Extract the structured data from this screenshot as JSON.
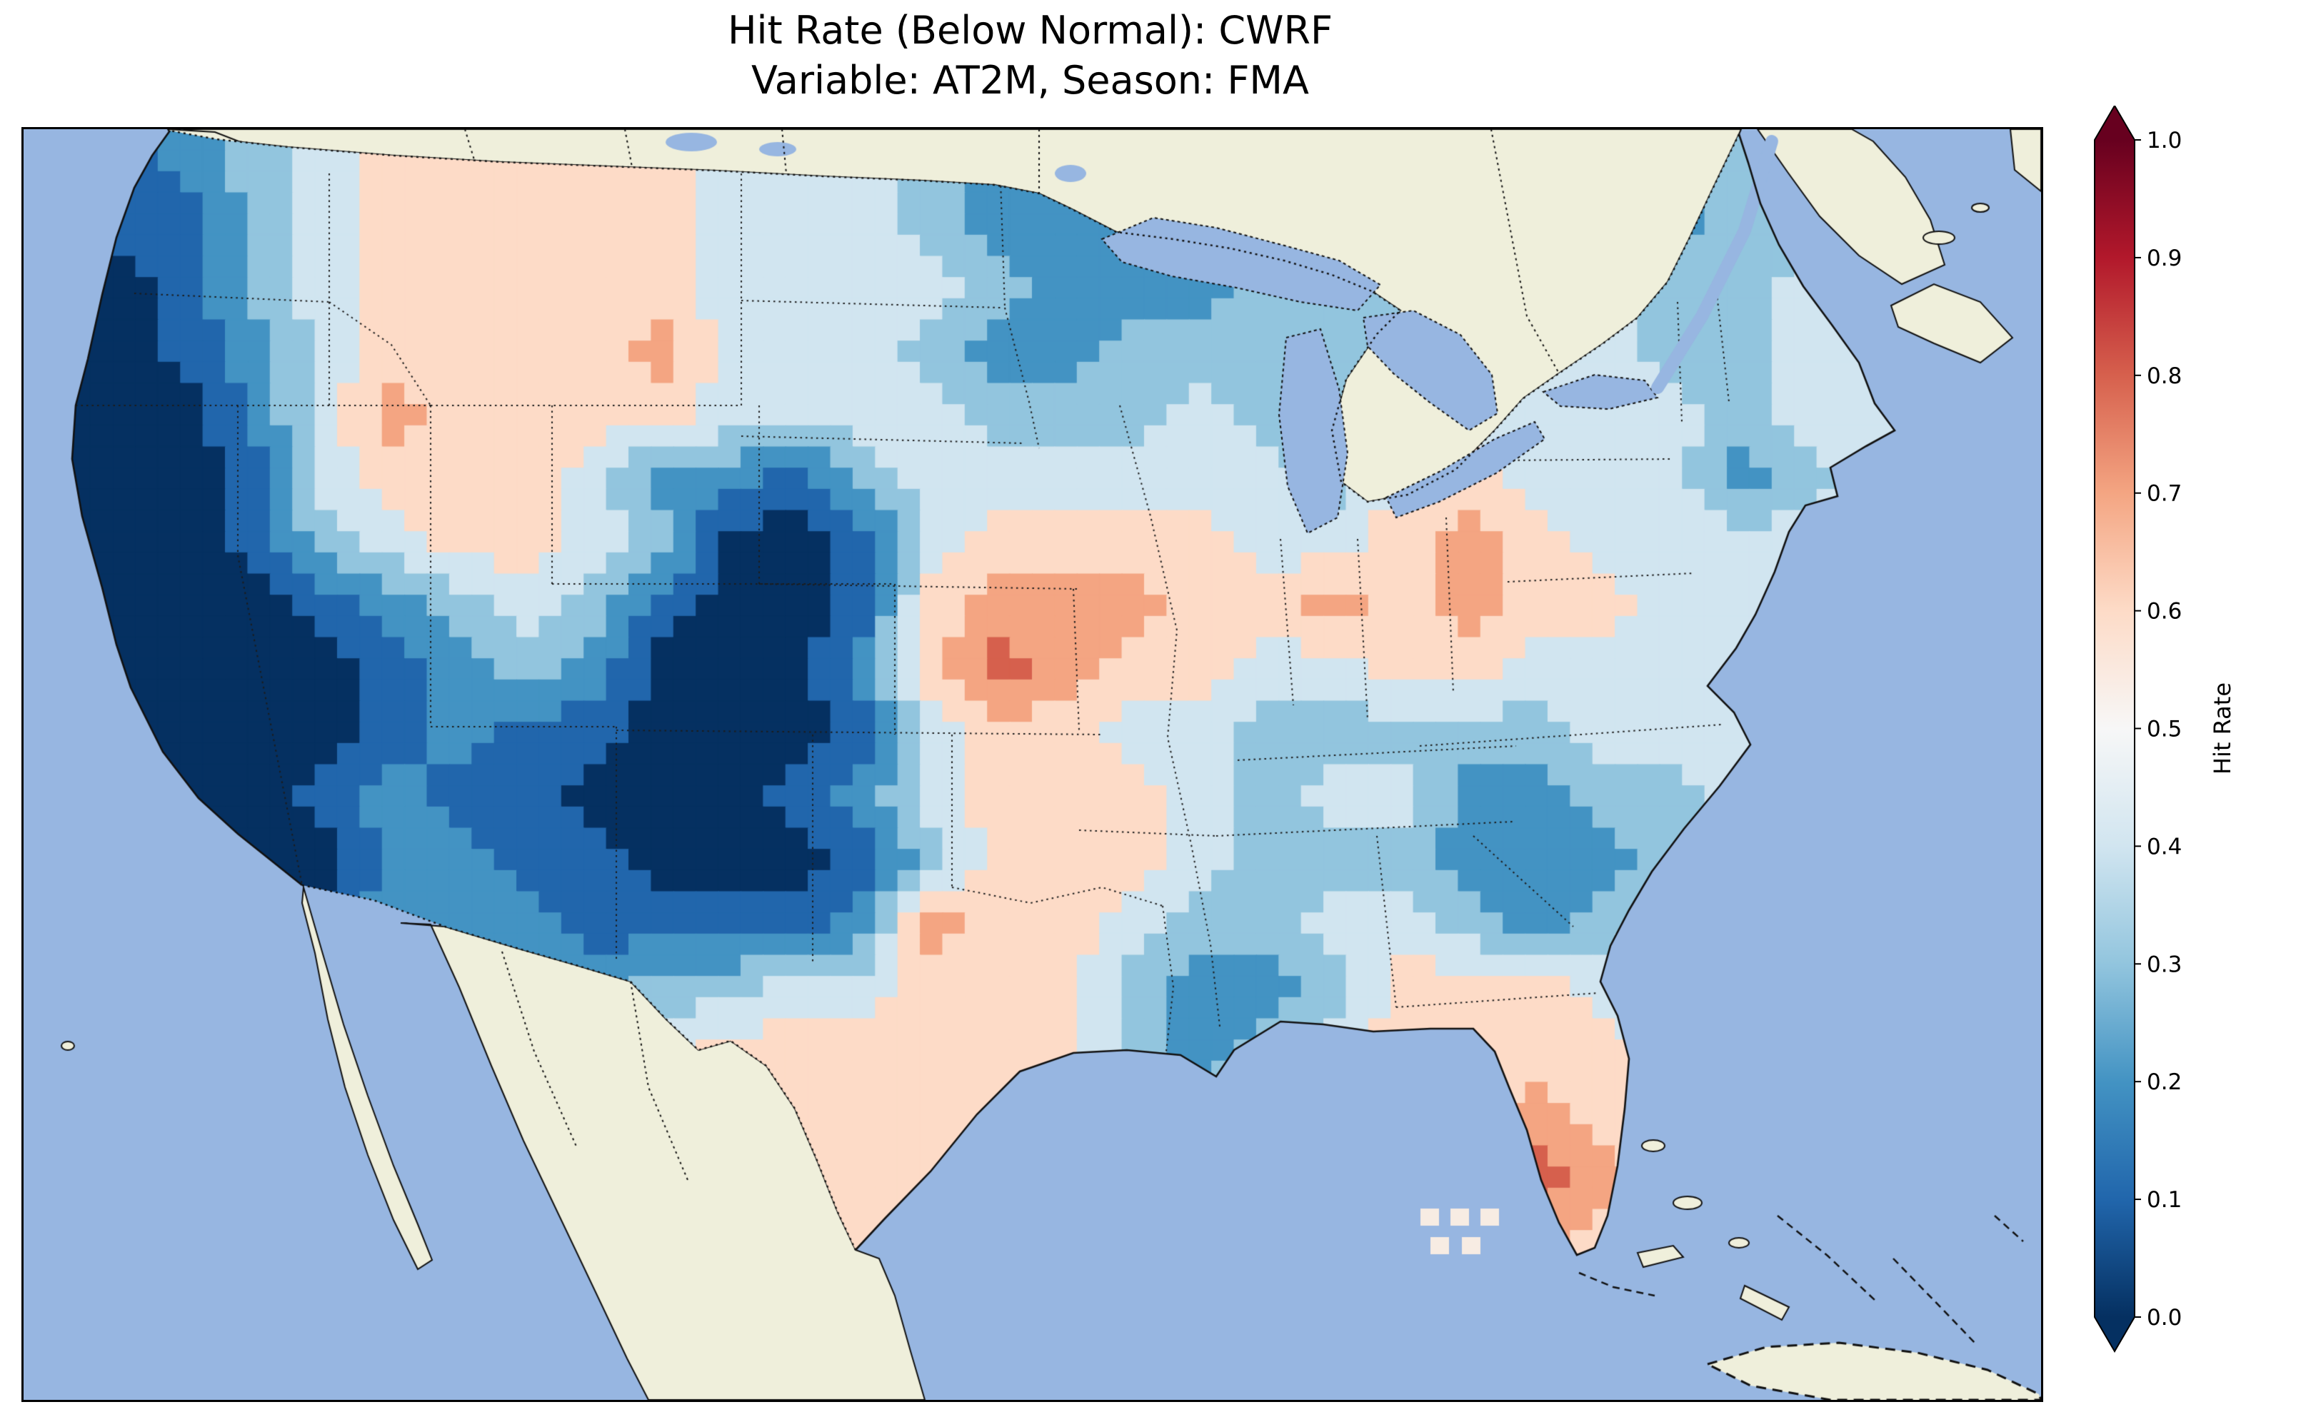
{
  "title": {
    "line1": "Hit Rate (Below Normal): CWRF",
    "line2": "Variable: AT2M, Season: FMA"
  },
  "colorbar": {
    "label": "Hit Rate",
    "ticks": [
      "1.0",
      "0.9",
      "0.8",
      "0.7",
      "0.6",
      "0.5",
      "0.4",
      "0.3",
      "0.2",
      "0.1",
      "0.0"
    ],
    "stops": [
      "#053061",
      "#2166ac",
      "#4393c3",
      "#92c5de",
      "#d1e5f0",
      "#f7f7f7",
      "#fddbc7",
      "#f4a582",
      "#d6604d",
      "#b2182b",
      "#67001f"
    ],
    "bucket_colors": [
      "#053061",
      "#2166ac",
      "#4393c3",
      "#92c5de",
      "#d1e5f0",
      "#fddbc7",
      "#f4a582",
      "#d6604d",
      "#b2182b",
      "#67001f"
    ],
    "over_color": "#67001f",
    "under_color": "#053061"
  },
  "map_colors": {
    "ocean": "#97b6e1",
    "land": "#efefdb",
    "coastline": "#111111",
    "state_line": "#1c1c1c",
    "stray_cell": "#f7ece3"
  },
  "chart_data": {
    "type": "heatmap",
    "title": "Hit Rate (Below Normal): CWRF — Variable: AT2M, Season: FMA",
    "region": "Contiguous United States",
    "colormap": "RdBu_r",
    "colorbar_label": "Hit Rate",
    "colorbar_ticks": [
      0.0,
      0.1,
      0.2,
      0.3,
      0.4,
      0.5,
      0.6,
      0.7,
      0.8,
      0.9,
      1.0
    ],
    "value_range": [
      0.0,
      1.0
    ],
    "grid_shape": [
      20,
      30
    ],
    "grid_encoding": "20 rows (north to south) x 30 cols (west to east); letters a-i = hit rate 0.05,0.15,0.25,0.35,0.45,0.55,0.65,0.75,0.85 (0.1 bins); values outside the US border are padding and are masked by the coastline",
    "grid_rows": [
      "bbcdefffffeeedcccdddeeedcddeee",
      "bbbdefffffeeedccccddeeedcddeee",
      "aabdefffffeeeedcccdddeeeddeeee",
      "aabceffffgeeedccdddddeeeddeeee",
      "aaacegffffeeeedddeddfeeeedeeee",
      "aaabefffeccbdeeeeeedffeeecdeee",
      "aaabdeffedaabeffffeefgfeeeeeee",
      "aaaabcdedbaabfgggffgfgffeeeeee",
      "aaaaabcdcaaacfhgffeeffeeeeeeee",
      "aaaaabcbbaaabeffeedddddeeeeeee",
      "aaaabcbbaaabcefffedeeccddeeeee",
      "aaaaaccbbaaabdfffedddcccdeeeee",
      "bbbbbcccbbbbcgffeddeedcdeeeeee",
      "cccccccccddeefffdccdfffeeeeeee",
      "ddddddeeeeffffffdcdeffffeeeeee",
      "eeeeeeeeefffffffedeeffgffeeeee",
      "eeeeeeeeeffffffffeeffghgfeeeee",
      "eeeeeeeeeffffffffffffggffeeeee",
      "eeeeeeeeeffffffffffffffffeeeee",
      "eeeeeeeeeffffffffffffffffeeeee"
    ],
    "notable_features": [
      "Very low hit rates (0.0-0.1, dark navy) over California, Nevada, Arizona, Utah, Colorado, New Mexico and the Texas panhandle",
      "Low hit rates (0.2-0.4, blue) over the Pacific Northwest coast, upper Midwest / Great Lakes, Gulf Coast of Louisiana-Mississippi, Georgia-South Carolina, and the Appalachians",
      "Near 0.5 (pale) across the northern plains, Midwest and Texas",
      "Higher hit rates (0.6-0.8, orange/red) in Kansas-Missouri, Iowa-Illinois, Ohio, Idaho, and south Florida"
    ]
  }
}
